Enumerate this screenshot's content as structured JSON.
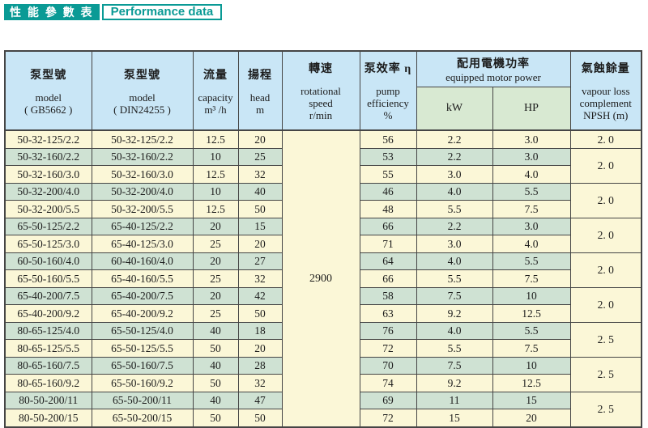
{
  "title": {
    "zh": "性 能 參 數 表",
    "en": "Performance data"
  },
  "colors": {
    "teal": "#0a9a95",
    "header_blue": "#c9e6f6",
    "header_green": "#d8e9d2",
    "row_cream": "#fbf7d7",
    "row_green": "#cfe2d3",
    "border": "#454545"
  },
  "table": {
    "headers": {
      "model_gb": {
        "zh": "泵型號",
        "en1": "model",
        "en2": "( GB5662 )"
      },
      "model_din": {
        "zh": "泵型號",
        "en1": "model",
        "en2": "( DIN24255 )"
      },
      "capacity": {
        "zh": "流量",
        "en1": "capacity",
        "en2": "m³ /h"
      },
      "head": {
        "zh": "揚程",
        "en1": "head",
        "en2": "m"
      },
      "speed": {
        "zh": "轉速",
        "en1": "rotational",
        "en2": "speed",
        "en3": "r/min"
      },
      "efficiency": {
        "zh": "泵效率 η",
        "en1": "pump",
        "en2": "efficiency",
        "en3": "%"
      },
      "motor_power": {
        "zh": "配用電機功率",
        "en": "equipped motor power",
        "kw": "kW",
        "hp": "HP"
      },
      "npsh": {
        "zh": "氣蝕餘量",
        "en1": "vapour loss",
        "en2": "complement",
        "en3": "NPSH  (m)"
      }
    },
    "speed_value": "2900",
    "rows": [
      {
        "model_gb": "50-32-125/2.2",
        "model_din": "50-32-125/2.2",
        "capacity": "12.5",
        "head": "20",
        "efficiency": "56",
        "kw": "2.2",
        "hp": "3.0"
      },
      {
        "model_gb": "50-32-160/2.2",
        "model_din": "50-32-160/2.2",
        "capacity": "10",
        "head": "25",
        "efficiency": "53",
        "kw": "2.2",
        "hp": "3.0"
      },
      {
        "model_gb": "50-32-160/3.0",
        "model_din": "50-32-160/3.0",
        "capacity": "12.5",
        "head": "32",
        "efficiency": "55",
        "kw": "3.0",
        "hp": "4.0"
      },
      {
        "model_gb": "50-32-200/4.0",
        "model_din": "50-32-200/4.0",
        "capacity": "10",
        "head": "40",
        "efficiency": "46",
        "kw": "4.0",
        "hp": "5.5"
      },
      {
        "model_gb": "50-32-200/5.5",
        "model_din": "50-32-200/5.5",
        "capacity": "12.5",
        "head": "50",
        "efficiency": "48",
        "kw": "5.5",
        "hp": "7.5"
      },
      {
        "model_gb": "65-50-125/2.2",
        "model_din": "65-40-125/2.2",
        "capacity": "20",
        "head": "15",
        "efficiency": "66",
        "kw": "2.2",
        "hp": "3.0"
      },
      {
        "model_gb": "65-50-125/3.0",
        "model_din": "65-40-125/3.0",
        "capacity": "25",
        "head": "20",
        "efficiency": "71",
        "kw": "3.0",
        "hp": "4.0"
      },
      {
        "model_gb": "60-50-160/4.0",
        "model_din": "60-40-160/4.0",
        "capacity": "20",
        "head": "27",
        "efficiency": "64",
        "kw": "4.0",
        "hp": "5.5"
      },
      {
        "model_gb": "65-50-160/5.5",
        "model_din": "65-40-160/5.5",
        "capacity": "25",
        "head": "32",
        "efficiency": "66",
        "kw": "5.5",
        "hp": "7.5"
      },
      {
        "model_gb": "65-40-200/7.5",
        "model_din": "65-40-200/7.5",
        "capacity": "20",
        "head": "42",
        "efficiency": "58",
        "kw": "7.5",
        "hp": "10"
      },
      {
        "model_gb": "65-40-200/9.2",
        "model_din": "65-40-200/9.2",
        "capacity": "25",
        "head": "50",
        "efficiency": "63",
        "kw": "9.2",
        "hp": "12.5"
      },
      {
        "model_gb": "80-65-125/4.0",
        "model_din": "65-50-125/4.0",
        "capacity": "40",
        "head": "18",
        "efficiency": "76",
        "kw": "4.0",
        "hp": "5.5"
      },
      {
        "model_gb": "80-65-125/5.5",
        "model_din": "65-50-125/5.5",
        "capacity": "50",
        "head": "20",
        "efficiency": "72",
        "kw": "5.5",
        "hp": "7.5"
      },
      {
        "model_gb": "80-65-160/7.5",
        "model_din": "65-50-160/7.5",
        "capacity": "40",
        "head": "28",
        "efficiency": "70",
        "kw": "7.5",
        "hp": "10"
      },
      {
        "model_gb": "80-65-160/9.2",
        "model_din": "65-50-160/9.2",
        "capacity": "50",
        "head": "32",
        "efficiency": "74",
        "kw": "9.2",
        "hp": "12.5"
      },
      {
        "model_gb": "80-50-200/11",
        "model_din": "65-50-200/11",
        "capacity": "40",
        "head": "47",
        "efficiency": "69",
        "kw": "11",
        "hp": "15"
      },
      {
        "model_gb": "80-50-200/15",
        "model_din": "65-50-200/15",
        "capacity": "50",
        "head": "50",
        "efficiency": "72",
        "kw": "15",
        "hp": "20"
      }
    ],
    "npsh_groups": [
      {
        "row": 0,
        "span": 1,
        "value": "2. 0"
      },
      {
        "row": 1,
        "span": 2,
        "value": "2. 0"
      },
      {
        "row": 3,
        "span": 2,
        "value": "2. 0"
      },
      {
        "row": 5,
        "span": 2,
        "value": "2. 0"
      },
      {
        "row": 7,
        "span": 2,
        "value": "2. 0"
      },
      {
        "row": 9,
        "span": 2,
        "value": "2. 0"
      },
      {
        "row": 11,
        "span": 2,
        "value": "2. 5"
      },
      {
        "row": 13,
        "span": 2,
        "value": "2. 5"
      },
      {
        "row": 15,
        "span": 2,
        "value": "2. 5"
      }
    ]
  }
}
